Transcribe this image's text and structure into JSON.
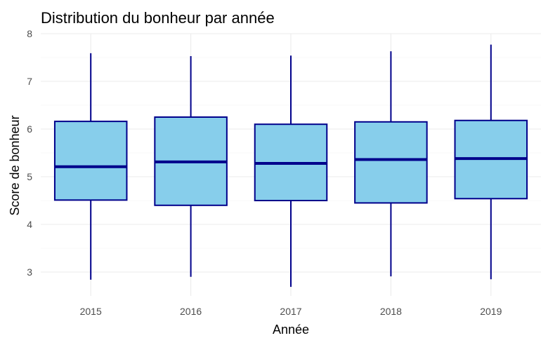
{
  "chart_data": {
    "type": "boxplot",
    "title": "Distribution du bonheur par année",
    "xlabel": "Année",
    "ylabel": "Score de bonheur",
    "categories": [
      "2015",
      "2016",
      "2017",
      "2018",
      "2019"
    ],
    "yticks": [
      "3",
      "4",
      "5",
      "6",
      "7",
      "8"
    ],
    "ylim": [
      2.5,
      8.0
    ],
    "grid": true,
    "boxes": [
      {
        "category": "2015",
        "min": 2.84,
        "q1": 4.51,
        "median": 5.21,
        "q3": 6.16,
        "max": 7.59
      },
      {
        "category": "2016",
        "min": 2.9,
        "q1": 4.4,
        "median": 5.31,
        "q3": 6.25,
        "max": 7.53
      },
      {
        "category": "2017",
        "min": 2.69,
        "q1": 4.5,
        "median": 5.28,
        "q3": 6.1,
        "max": 7.54
      },
      {
        "category": "2018",
        "min": 2.91,
        "q1": 4.45,
        "median": 5.36,
        "q3": 6.15,
        "max": 7.63
      },
      {
        "category": "2019",
        "min": 2.85,
        "q1": 4.54,
        "median": 5.38,
        "q3": 6.18,
        "max": 7.77
      }
    ],
    "colors": {
      "fill": "#87ceeb",
      "stroke": "#00008b"
    }
  }
}
